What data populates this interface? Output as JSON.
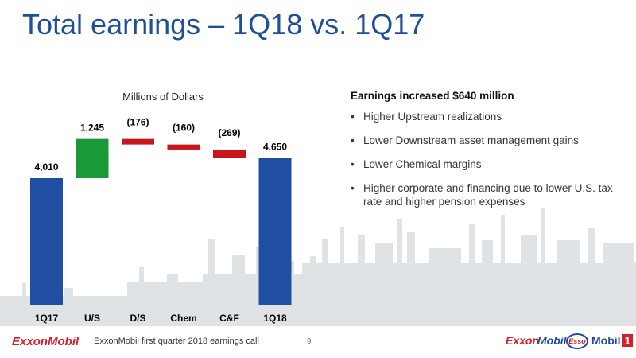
{
  "title": "Total earnings – 1Q18 vs. 1Q17",
  "chart_data": {
    "type": "waterfall",
    "unit_label": "Millions of Dollars",
    "categories": [
      "1Q17",
      "U/S",
      "D/S",
      "Chem",
      "C&F",
      "1Q18"
    ],
    "values": [
      4010,
      1245,
      -176,
      -160,
      -269,
      4650
    ],
    "value_labels": [
      "4,010",
      "1,245",
      "(176)",
      "(160)",
      "(269)",
      "4,650"
    ],
    "kinds": [
      "total",
      "increase",
      "decrease",
      "decrease",
      "decrease",
      "total"
    ],
    "colors": {
      "total": "#1f4ea3",
      "increase": "#1a9a36",
      "decrease": "#c8161d"
    }
  },
  "summary": {
    "heading": "Earnings increased $640 million",
    "bullets": [
      "Higher Upstream realizations",
      "Lower Downstream asset management gains",
      "Lower Chemical margins",
      "Higher corporate and financing due to lower U.S. tax rate and higher pension expenses"
    ]
  },
  "footer": {
    "logo_left": "ExxonMobil",
    "text": "ExxonMobil first quarter 2018 earnings call",
    "page": "9",
    "brand_exxon": "Exxon",
    "brand_mobil": "Mobil",
    "brand_esso": "Esso",
    "brand_mobil1": "Mobil",
    "brand_mobil1_num": "1"
  }
}
